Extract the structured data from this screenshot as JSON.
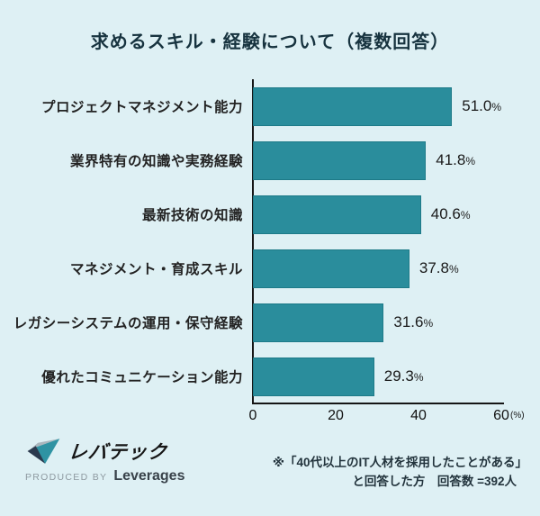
{
  "chart_data": {
    "type": "bar",
    "orientation": "horizontal",
    "title": "求めるスキル・経験について（複数回答）",
    "categories": [
      "プロジェクトマネジメント能力",
      "業界特有の知識や実務経験",
      "最新技術の知識",
      "マネジメント・育成スキル",
      "レガシーシステムの運用・保守経験",
      "優れたコミュニケーション能力"
    ],
    "values": [
      51.0,
      41.8,
      40.6,
      37.8,
      31.6,
      29.3
    ],
    "unit": "%",
    "xlabel": "",
    "ylabel": "",
    "xlim": [
      0,
      60
    ],
    "x_ticks": [
      0,
      20,
      40,
      60
    ],
    "x_axis_unit_label": "(%)",
    "grid": "off",
    "legend": "none",
    "bar_color": "#2a8d9c",
    "bar_border_color": "#1d7a88",
    "background_color": "#def0f4"
  },
  "footer": {
    "logo_text": "レバテック",
    "produced_by_label": "PRODUCED BY",
    "company_name": "Leverages",
    "note_line1": "※「40代以上のIT人材を採用したことがある」",
    "note_line2": "と回答した方　回答数 =392人"
  }
}
